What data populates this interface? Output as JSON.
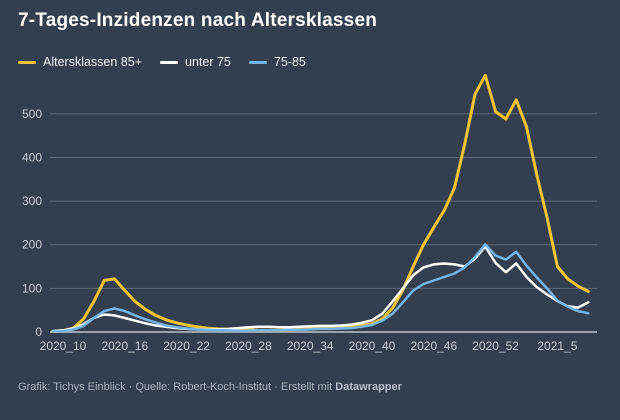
{
  "footer": {
    "credit": "Grafik: Tichys Einblick · Quelle: Robert-Koch-Institut · Erstellt mit ",
    "brand": "Datawrapper"
  },
  "colors": {
    "background": "#333e4e",
    "grid": "rgba(255,255,255,0.22)",
    "baseline": "#99a1ac",
    "tick_text": "#c9ced5"
  },
  "chart_data": {
    "type": "line",
    "title": "7-Tages-Inzidenzen nach Altersklassen",
    "categories": [
      "2020_9",
      "2020_10",
      "2020_11",
      "2020_12",
      "2020_13",
      "2020_14",
      "2020_15",
      "2020_16",
      "2020_17",
      "2020_18",
      "2020_19",
      "2020_20",
      "2020_21",
      "2020_22",
      "2020_23",
      "2020_24",
      "2020_25",
      "2020_26",
      "2020_27",
      "2020_28",
      "2020_29",
      "2020_30",
      "2020_31",
      "2020_32",
      "2020_33",
      "2020_34",
      "2020_35",
      "2020_36",
      "2020_37",
      "2020_38",
      "2020_39",
      "2020_40",
      "2020_41",
      "2020_42",
      "2020_43",
      "2020_44",
      "2020_45",
      "2020_46",
      "2020_47",
      "2020_48",
      "2020_49",
      "2020_50",
      "2020_51",
      "2020_52",
      "2020_53",
      "2021_1",
      "2021_2",
      "2021_3",
      "2021_4",
      "2021_5",
      "2021_6",
      "2021_7",
      "2021_8"
    ],
    "x_tick_labels": [
      "2020_10",
      "2020_16",
      "2020_22",
      "2020_28",
      "2020_34",
      "2020_40",
      "2020_46",
      "2020_52",
      "2021_5"
    ],
    "y_ticks": [
      0,
      100,
      200,
      300,
      400,
      500
    ],
    "ylim": [
      0,
      600
    ],
    "grid": "horizontal",
    "legend_position": "top",
    "series": [
      {
        "name": "Altersklassen 85+",
        "color": "#f0c42f",
        "values": [
          1,
          3,
          9,
          30,
          70,
          118,
          122,
          95,
          70,
          52,
          38,
          28,
          21,
          16,
          12,
          9,
          7,
          6,
          5,
          5,
          4,
          4,
          4,
          5,
          6,
          7,
          8,
          9,
          10,
          12,
          15,
          19,
          30,
          55,
          96,
          150,
          200,
          240,
          278,
          330,
          430,
          545,
          588,
          505,
          488,
          532,
          470,
          360,
          262,
          150,
          122,
          105,
          93
        ]
      },
      {
        "name": "unter 75",
        "color": "#ffffff",
        "values": [
          2,
          4,
          8,
          18,
          32,
          40,
          38,
          32,
          26,
          20,
          15,
          12,
          9,
          7,
          6,
          6,
          6,
          7,
          9,
          11,
          12,
          12,
          11,
          11,
          12,
          13,
          14,
          14,
          15,
          17,
          21,
          27,
          42,
          70,
          100,
          130,
          148,
          155,
          157,
          155,
          150,
          168,
          196,
          158,
          137,
          157,
          126,
          103,
          86,
          71,
          59,
          56,
          68
        ]
      },
      {
        "name": "75-85",
        "color": "#74b4e6",
        "values": [
          1,
          2,
          6,
          14,
          32,
          48,
          54,
          48,
          38,
          29,
          22,
          15,
          11,
          8,
          6,
          5,
          4,
          4,
          3,
          3,
          4,
          4,
          4,
          5,
          5,
          6,
          7,
          7,
          8,
          9,
          12,
          16,
          26,
          42,
          68,
          95,
          110,
          118,
          126,
          134,
          148,
          172,
          201,
          175,
          166,
          184,
          152,
          125,
          100,
          72,
          58,
          48,
          43
        ]
      }
    ]
  }
}
